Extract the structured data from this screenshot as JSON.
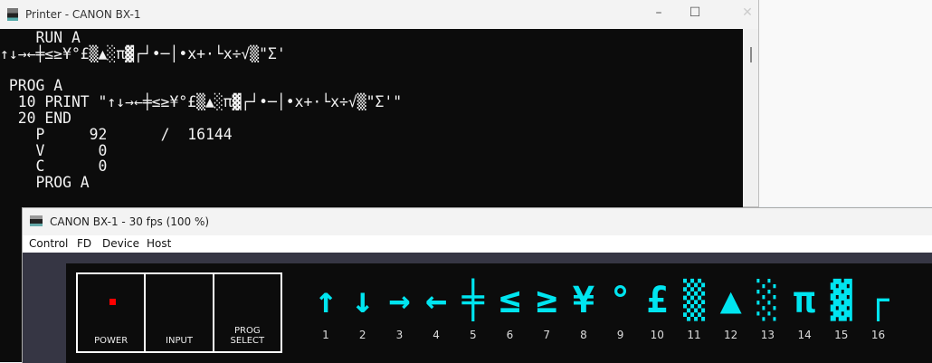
{
  "printer_window": {
    "title": "Printer - CANON BX-1",
    "controls": {
      "minimize": "–",
      "maximize": "☐",
      "close": "✕"
    },
    "console_lines": [
      "    RUN A",
      "↑↓→←╪≤≥¥°£▒▲░π▓┌┘•─│•x+·└x÷√▒\"Σ'",
      "",
      " PROG A",
      "  10 PRINT \"↑↓→←╪≤≥¥°£▒▲░π▓┌┘•─│•x+·└x÷√▒\"Σ'\"",
      "  20 END",
      "    P     92      /  16144",
      "    V      0",
      "    C      0",
      "    PROG A"
    ]
  },
  "device_window": {
    "title": "CANON BX-1 - 30 fps (100 %)",
    "menu": [
      "Control",
      "FD",
      "Device",
      "Host"
    ],
    "buttons": [
      {
        "label": "POWER",
        "led": "on",
        "led_color": "#ff0000"
      },
      {
        "label": "INPUT"
      },
      {
        "label": "PROG\nSELECT"
      }
    ],
    "display_color": "#00e5f0",
    "display_chars": [
      "↑",
      "↓",
      "→",
      "←",
      "╪",
      "≤",
      "≥",
      "¥",
      "°",
      "£",
      "▒",
      "▲",
      "░",
      "π",
      "▓",
      "┌"
    ],
    "position_labels": [
      "1",
      "2",
      "3",
      "4",
      "5",
      "6",
      "7",
      "8",
      "9",
      "10",
      "11",
      "12",
      "13",
      "14",
      "15",
      "16"
    ]
  }
}
